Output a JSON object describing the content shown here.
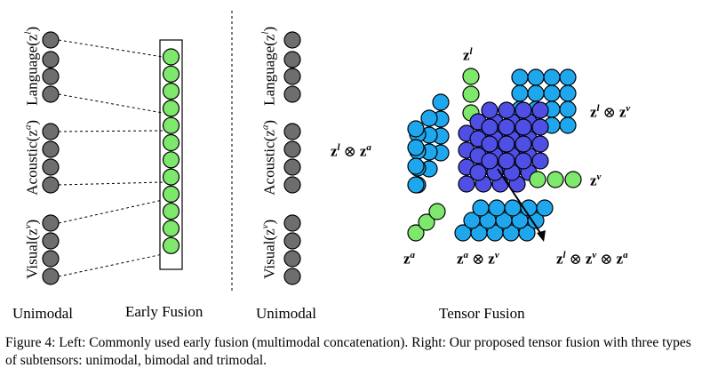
{
  "figure": {
    "left_labels": {
      "language": "Language(z",
      "language_sup": "l",
      "acoustic": "Acoustic(z",
      "acoustic_sup": "a",
      "visual": "Visual(z",
      "visual_sup": "v"
    },
    "bottom_labels": {
      "unimodal_left": "Unimodal",
      "early_fusion": "Early Fusion",
      "unimodal_right": "Unimodal",
      "tensor_fusion": "Tensor Fusion"
    },
    "tensor_labels": {
      "zl": "z",
      "zl_sup": "l",
      "zl_zv": "z",
      "zl_zv_sup1": "l",
      "zl_zv_op": "⊗",
      "zl_zv_b": "z",
      "zl_zv_sup2": "v",
      "zl_za_a": "z",
      "zl_za_sup1": "l",
      "zl_za_op": "⊗",
      "zl_za_b": "z",
      "zl_za_sup2": "a",
      "zv": "z",
      "zv_sup": "v",
      "za": "z",
      "za_sup": "a",
      "za_zv_a": "z",
      "za_zv_sup1": "a",
      "za_zv_op": "⊗",
      "za_zv_b": "z",
      "za_zv_sup2": "v",
      "tri_a": "z",
      "tri_sup1": "l",
      "tri_op1": "⊗",
      "tri_b": "z",
      "tri_sup2": "v",
      "tri_op2": "⊗",
      "tri_c": "z",
      "tri_sup3": "a"
    },
    "colors": {
      "gray": "#6e6e6e",
      "green": "#7de86b",
      "blue": "#1ea7ec",
      "purple": "#4f4fe6"
    }
  },
  "caption": {
    "text": "Figure 4: Left: Commonly used early fusion (multimodal concatenation). Right: Our proposed tensor fusion with three types of subtensors: unimodal, bimodal and trimodal."
  }
}
